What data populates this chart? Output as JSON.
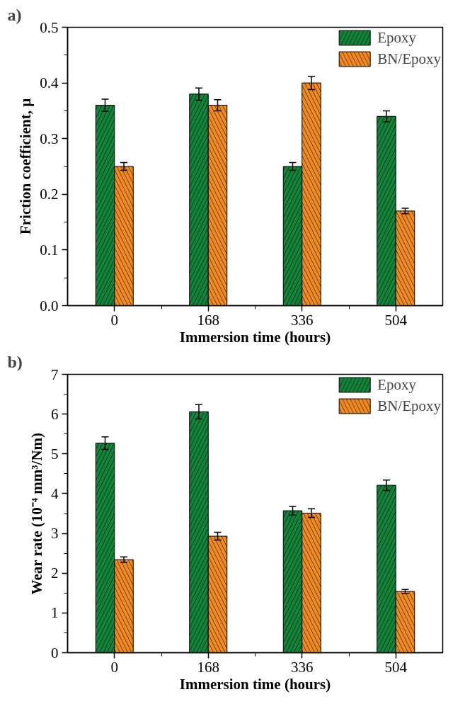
{
  "chart_data": [
    {
      "type": "bar",
      "annotations": [
        "a)"
      ],
      "xlabel": "Immersion time (hours)",
      "ylabel": "Friction coefficient, μ",
      "categories": [
        "0",
        "168",
        "336",
        "504"
      ],
      "ylim": [
        0,
        0.5
      ],
      "yticks": [
        {
          "value": 0,
          "label": "0.0"
        },
        0.1,
        0.2,
        0.3,
        0.4,
        0.5
      ],
      "grid": false,
      "legend": "top right",
      "series": [
        {
          "name": "Epoxy",
          "color": "#13843a",
          "values": [
            0.36,
            0.38,
            0.25,
            0.34
          ],
          "errors": [
            0.011,
            0.011,
            0.007,
            0.01
          ]
        },
        {
          "name": "BN/Epoxy",
          "color": "#f28a22",
          "values": [
            0.25,
            0.36,
            0.4,
            0.17
          ],
          "errors": [
            0.007,
            0.01,
            0.012,
            0.005
          ]
        }
      ]
    },
    {
      "type": "bar",
      "annotations": [
        "b)"
      ],
      "xlabel": "Immersion time (hours)",
      "ylabel": "Wear rate (10⁻⁴ mm³/Nm)",
      "categories": [
        "0",
        "168",
        "336",
        "504"
      ],
      "ylim": [
        0,
        7
      ],
      "yticks": [
        0,
        1,
        2,
        3,
        4,
        5,
        6,
        7
      ],
      "grid": false,
      "legend": "top right",
      "series": [
        {
          "name": "Epoxy",
          "color": "#13843a",
          "values": [
            5.27,
            6.06,
            3.57,
            4.21
          ],
          "errors": [
            0.16,
            0.18,
            0.11,
            0.13
          ]
        },
        {
          "name": "BN/Epoxy",
          "color": "#f28a22",
          "values": [
            2.34,
            2.93,
            3.51,
            1.54
          ],
          "errors": [
            0.07,
            0.1,
            0.11,
            0.05
          ]
        }
      ]
    }
  ]
}
